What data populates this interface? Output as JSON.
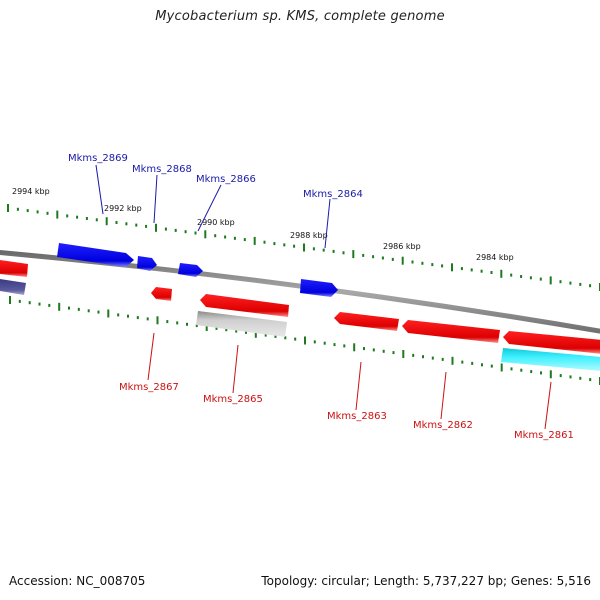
{
  "title": "Mycobacterium sp. KMS, complete genome",
  "footer": {
    "accession": "Accession: NC_008705",
    "summary": "Topology: circular; Length: 5,737,227 bp; Genes: 5,516"
  },
  "colors": {
    "forward_gene": "#0000ee",
    "reverse_gene": "#ee0000",
    "forward_label": "#1a1aa8",
    "reverse_label": "#cc1111",
    "tick": "#1e7a1e",
    "backbone": "#808080",
    "gray_gene": "#bdbdbd",
    "cyan_gene": "#22e0ee",
    "dark_gene": "#4a4a8a"
  },
  "kbp_labels": [
    "2994 kbp",
    "2992 kbp",
    "2990 kbp",
    "2988 kbp",
    "2986 kbp",
    "2984 kbp"
  ],
  "genes_forward": [
    "Mkms_2869",
    "Mkms_2868",
    "Mkms_2866",
    "Mkms_2864"
  ],
  "genes_reverse": [
    "Mkms_2867",
    "Mkms_2865",
    "Mkms_2863",
    "Mkms_2862",
    "Mkms_2861"
  ]
}
